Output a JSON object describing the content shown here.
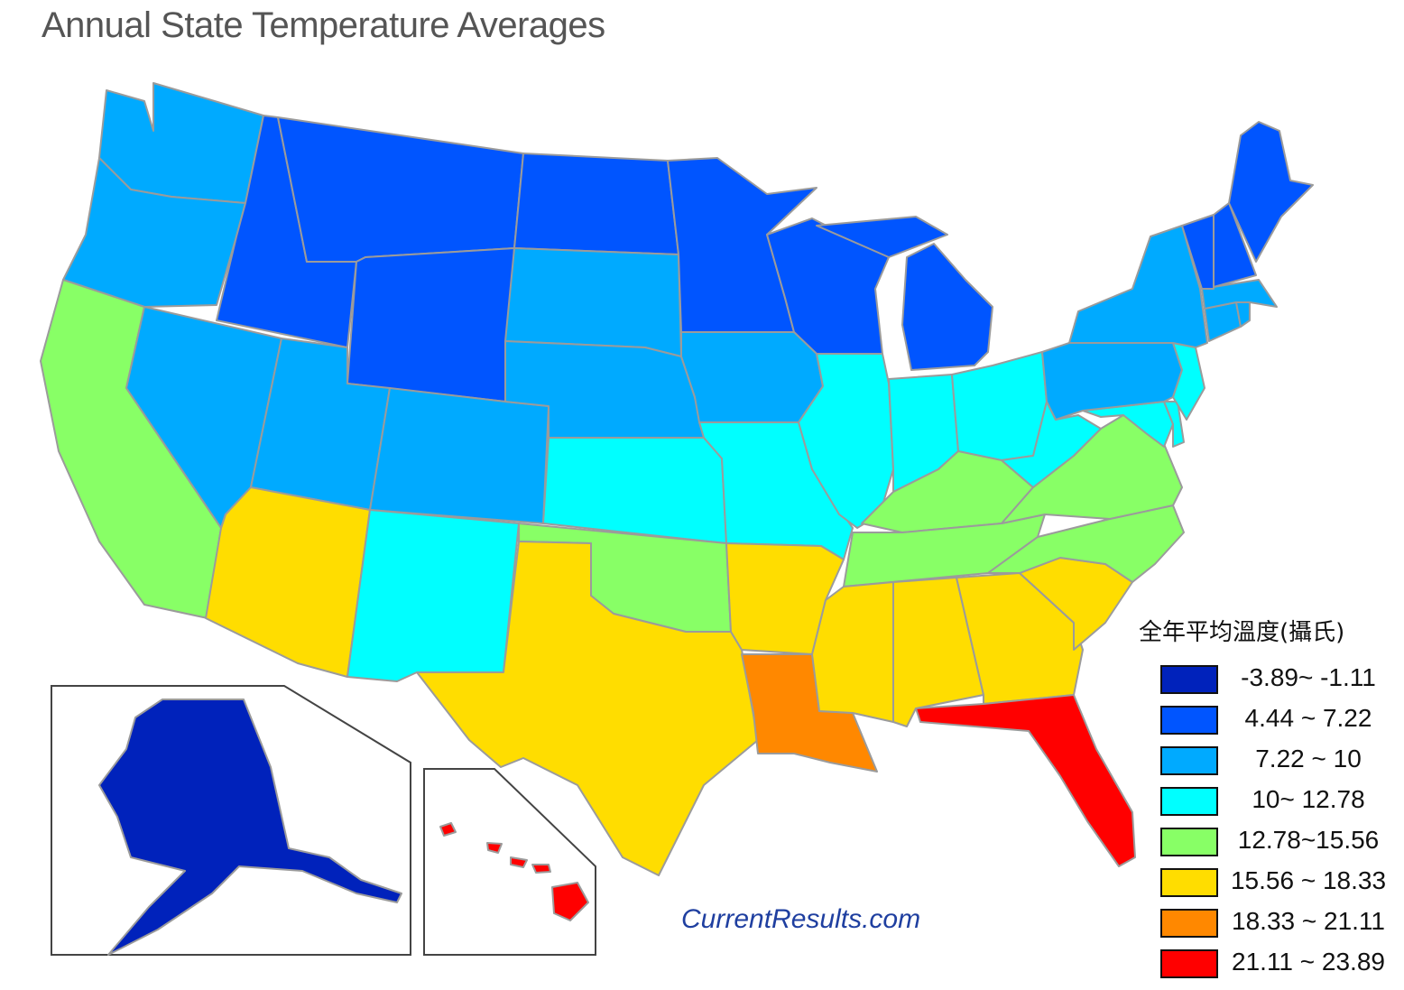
{
  "title": "Annual State Temperature Averages",
  "watermark": "CurrentResults.com",
  "legend": {
    "title": "全年平均溫度(攝氏)",
    "items": [
      {
        "label": "-3.89~ -1.11",
        "color": "#0022bb"
      },
      {
        "label": "4.44 ~ 7.22",
        "color": "#0055ff"
      },
      {
        "label": "7.22 ~ 10",
        "color": "#00aaff"
      },
      {
        "label": "10~ 12.78",
        "color": "#00ffff"
      },
      {
        "label": "12.78~15.56",
        "color": "#88ff66"
      },
      {
        "label": "15.56 ~ 18.33",
        "color": "#ffdd00"
      },
      {
        "label": "18.33 ~ 21.11",
        "color": "#ff8800"
      },
      {
        "label": "21.11 ~ 23.89",
        "color": "#ff0000"
      }
    ]
  }
}
